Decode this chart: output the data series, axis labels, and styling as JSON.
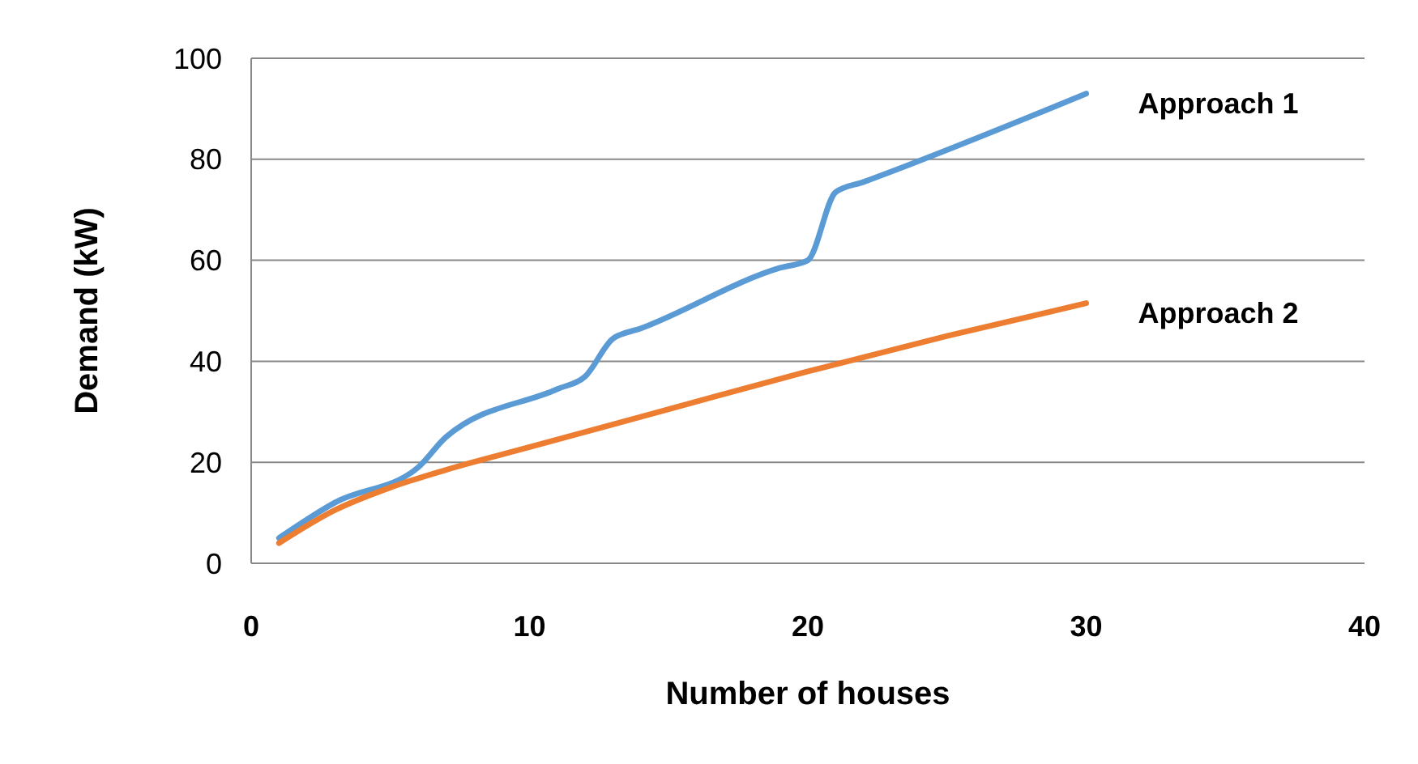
{
  "chart_data": {
    "type": "line",
    "xlabel": "Number of houses",
    "ylabel": "Demand (kW)",
    "xlim": [
      0,
      40
    ],
    "xticks": [
      0,
      10,
      20,
      30,
      40
    ],
    "ylim": [
      0,
      100
    ],
    "yticks": [
      0,
      20,
      40,
      60,
      80,
      100
    ],
    "grid": "y",
    "legend": false,
    "marker": "none",
    "line_style": "solid",
    "series": [
      {
        "name": "Approach 1",
        "color": "#5b9bd5",
        "x": [
          1,
          3,
          6,
          7,
          11,
          12,
          13,
          14,
          19,
          20,
          21,
          22,
          30
        ],
        "values": [
          5,
          12,
          19,
          25,
          34.5,
          37,
          44.5,
          46.5,
          58.5,
          60,
          73.5,
          75.5,
          93
        ]
      },
      {
        "name": "Approach 2",
        "color": "#ed7d31",
        "x": [
          1,
          3,
          5,
          7,
          10,
          15,
          20,
          25,
          30
        ],
        "values": [
          4,
          10.5,
          15,
          18.5,
          23,
          30.5,
          38,
          45,
          51.5
        ]
      }
    ]
  }
}
